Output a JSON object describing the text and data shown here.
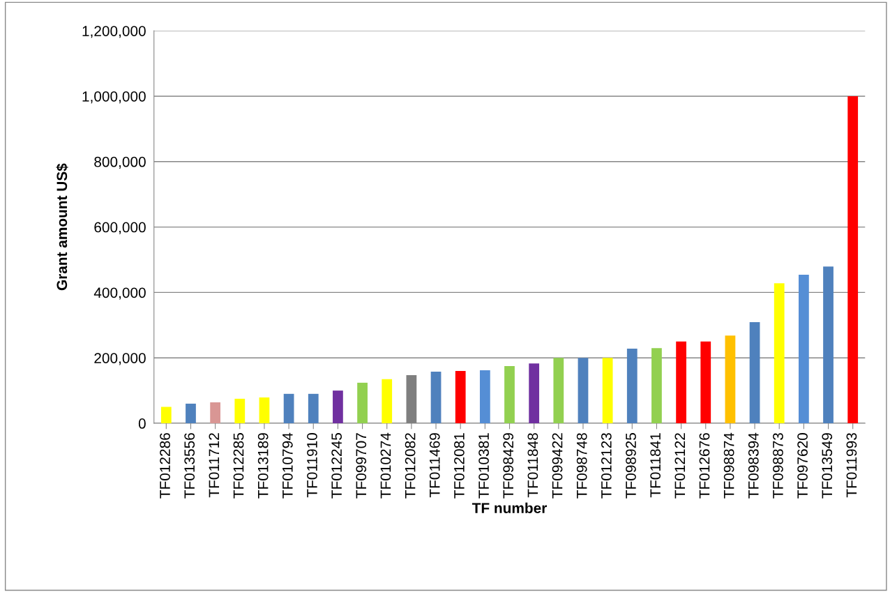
{
  "chart_data": {
    "type": "bar",
    "xlabel": "TF number",
    "ylabel": "Grant amount US$",
    "categories": [
      "TF012286",
      "TF013556",
      "TF011712",
      "TF012285",
      "TF013189",
      "TF010794",
      "TF011910",
      "TF012245",
      "TF099707",
      "TF010274",
      "TF012082",
      "TF011469",
      "TF012081",
      "TF010381",
      "TF098429",
      "TF011848",
      "TF099422",
      "TF098748",
      "TF012123",
      "TF098925",
      "TF011841",
      "TF012122",
      "TF012676",
      "TF098874",
      "TF098394",
      "TF098873",
      "TF097620",
      "TF013549",
      "TF011993"
    ],
    "values": [
      50000,
      60000,
      64000,
      75000,
      79000,
      90000,
      90000,
      100000,
      124000,
      135000,
      147000,
      158000,
      160000,
      162000,
      175000,
      183000,
      200000,
      200000,
      200000,
      228000,
      230000,
      250000,
      250000,
      268000,
      309000,
      428000,
      454000,
      479000,
      1000000
    ],
    "colors": [
      "#ffff00",
      "#4f81bd",
      "#d99694",
      "#ffff00",
      "#ffff00",
      "#4f81bd",
      "#4f81bd",
      "#7030a0",
      "#92d050",
      "#ffff00",
      "#7f7f7f",
      "#4f81bd",
      "#ff0000",
      "#558ed5",
      "#92d050",
      "#7030a0",
      "#92d050",
      "#4f81bd",
      "#ffff00",
      "#4f81bd",
      "#92d050",
      "#ff0000",
      "#ff0000",
      "#ffc000",
      "#4f81bd",
      "#ffff00",
      "#558ed5",
      "#4f81bd",
      "#ff0000"
    ],
    "ylim": [
      0,
      1200000
    ],
    "yticks": [
      {
        "value": 0,
        "label": "0"
      },
      {
        "value": 200000,
        "label": "200,000"
      },
      {
        "value": 400000,
        "label": "400,000"
      },
      {
        "value": 600000,
        "label": "600,000"
      },
      {
        "value": 800000,
        "label": "800,000"
      },
      {
        "value": 1000000,
        "label": "1,000,000"
      },
      {
        "value": 1200000,
        "label": "1,200,000"
      }
    ],
    "grid": "y",
    "legend": false
  }
}
